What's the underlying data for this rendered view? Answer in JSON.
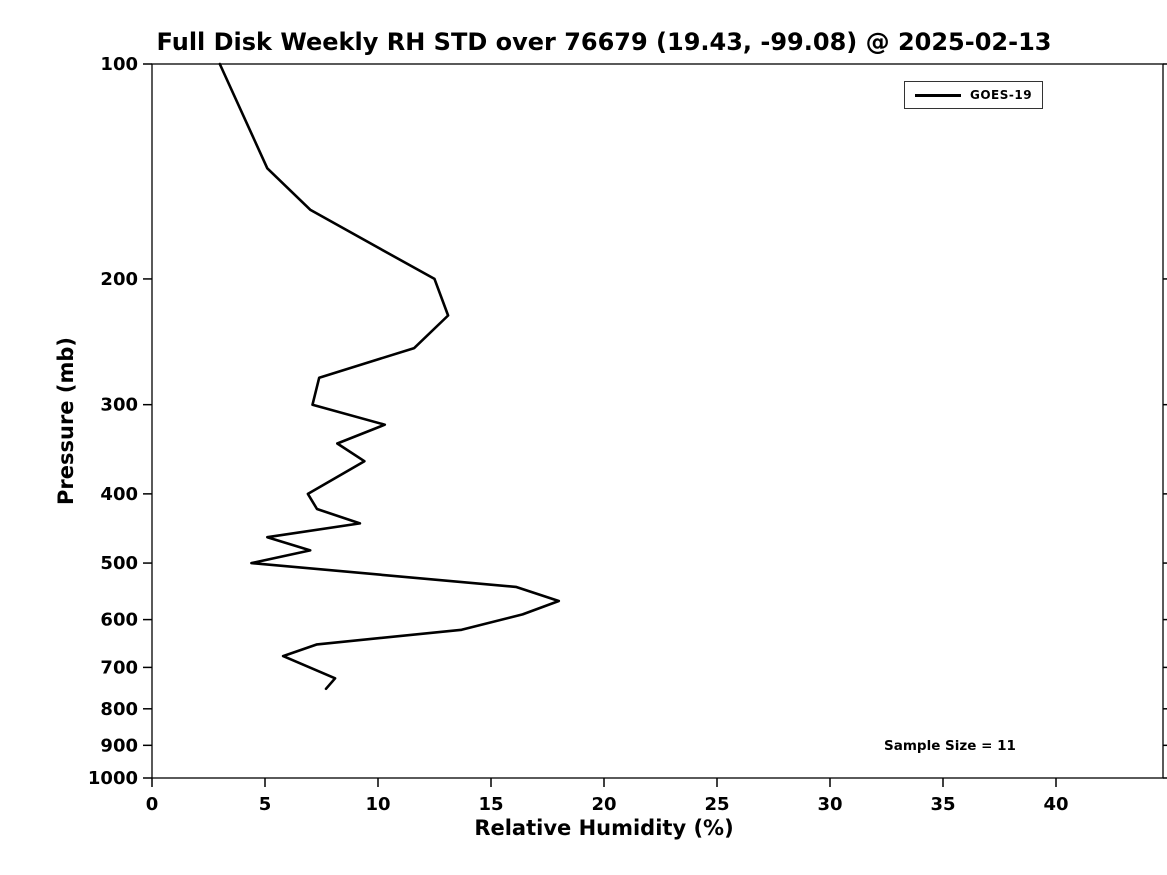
{
  "chart_data": {
    "type": "line",
    "title": "Full Disk Weekly RH STD over 76679 (19.43, -99.08) @ 2025-02-13",
    "xlabel": "Relative Humidity (%)",
    "ylabel": "Pressure (mb)",
    "x_ticks": [
      0,
      5,
      10,
      15,
      20,
      25,
      30,
      35,
      40
    ],
    "y_ticks": [
      100,
      200,
      300,
      400,
      500,
      600,
      700,
      800,
      900,
      1000
    ],
    "xlim": [
      0,
      45
    ],
    "ylim": [
      100,
      1000
    ],
    "y_scale": "log",
    "y_inverted": true,
    "grid": false,
    "legend_position": "upper right",
    "line_color": "#000000",
    "series": [
      {
        "name": "GOES-19",
        "color": "#000000",
        "pressure_mb": [
          100,
          140,
          160,
          180,
          200,
          225,
          250,
          275,
          300,
          320,
          340,
          360,
          400,
          420,
          440,
          460,
          480,
          500,
          540,
          565,
          590,
          620,
          650,
          675,
          725,
          750
        ],
        "rh_percent": [
          3.0,
          5.1,
          7.0,
          9.9,
          12.5,
          13.1,
          11.6,
          7.4,
          7.1,
          10.3,
          8.2,
          9.4,
          6.9,
          7.3,
          9.2,
          5.1,
          7.0,
          4.4,
          16.1,
          18.0,
          16.4,
          13.7,
          7.3,
          5.8,
          8.1,
          7.7
        ]
      }
    ],
    "annotations": [
      {
        "text": "Sample Size = 11"
      }
    ]
  }
}
